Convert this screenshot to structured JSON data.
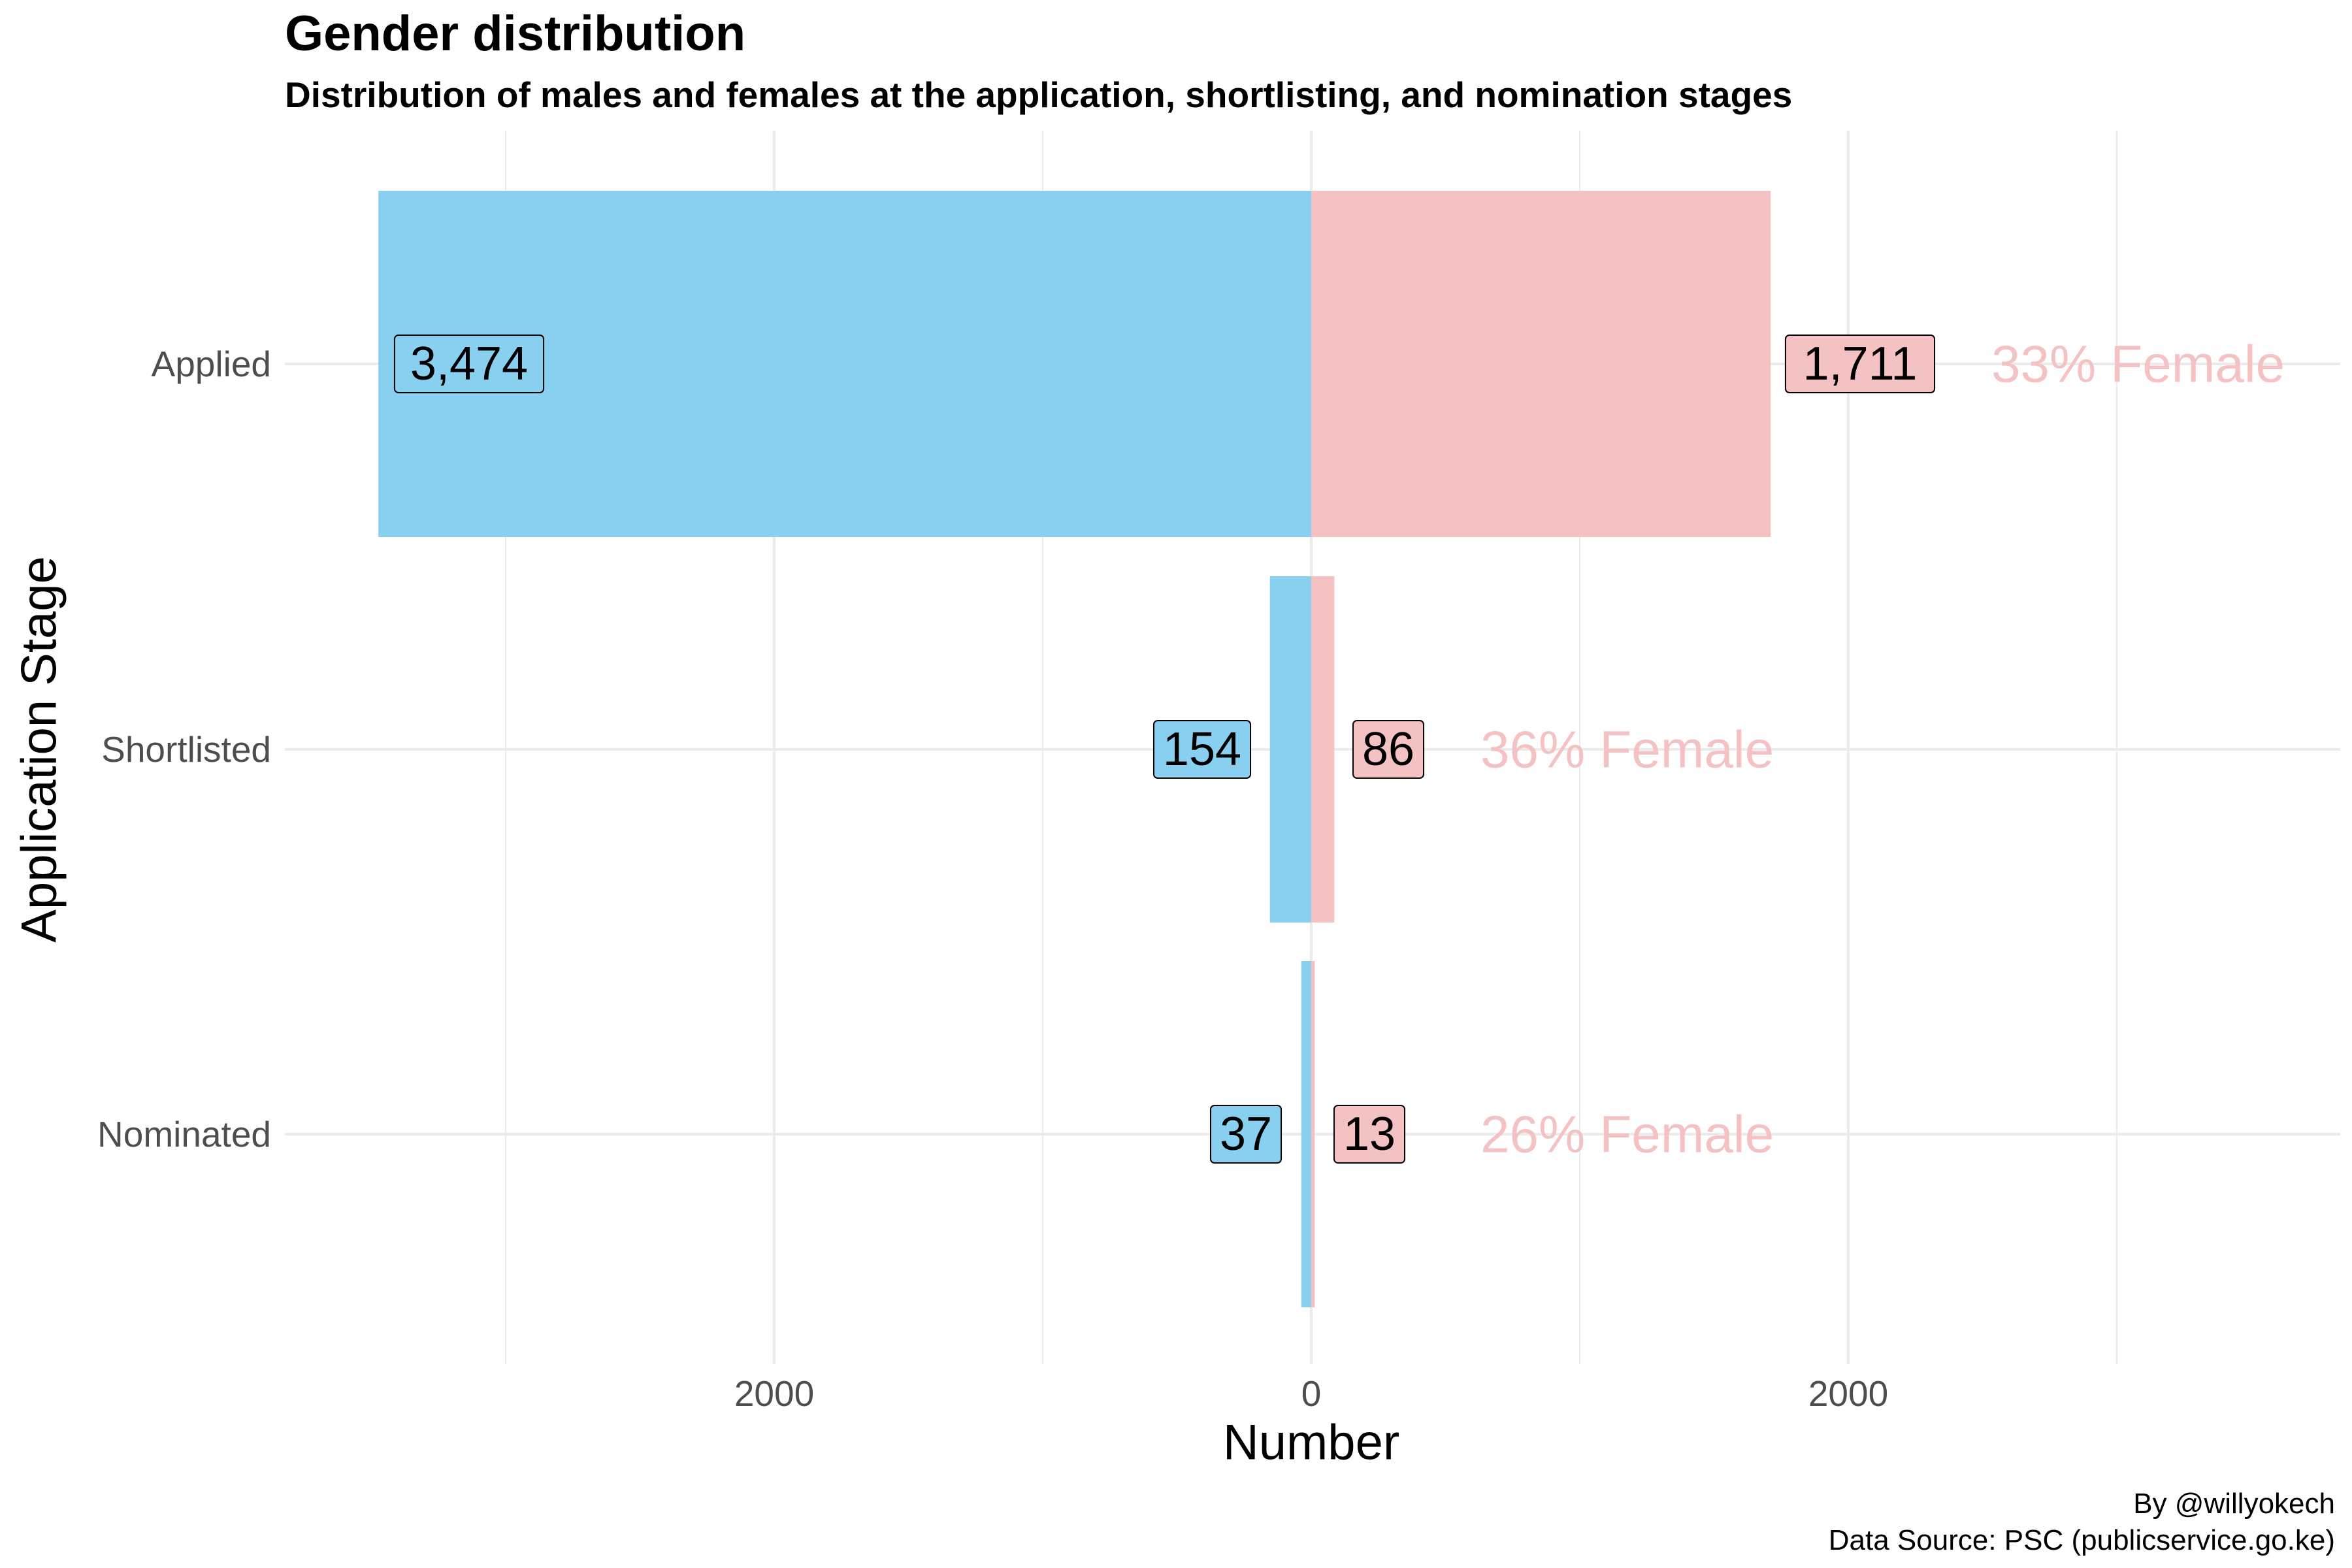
{
  "title": "Gender distribution",
  "subtitle": "Distribution of males and females at the application, shortlisting, and nomination stages",
  "caption": {
    "line1": "By @willyokech",
    "line2": "Data Source: PSC (publicservice.go.ke)"
  },
  "colors": {
    "male": "#89cff0",
    "female": "#f4c2c2",
    "grid": "#ebebeb",
    "text": "#4d4d4d"
  },
  "chart_data": {
    "type": "bar",
    "orientation": "horizontal-diverging",
    "xlabel": "Number",
    "ylabel": "Application Stage",
    "xlim": [
      -3500,
      3800
    ],
    "x_ticks": [
      -2000,
      0,
      2000
    ],
    "x_tick_labels": [
      "2000",
      "0",
      "2000"
    ],
    "grid": true,
    "legend": "none",
    "categories": [
      "Applied",
      "Shortlisted",
      "Nominated"
    ],
    "series": [
      {
        "values": [
          3474,
          154,
          37
        ],
        "labels": [
          "3,474",
          "154",
          "37"
        ],
        "color": "#89cff0"
      },
      {
        "values": [
          1711,
          86,
          13
        ],
        "labels": [
          "1,711",
          "86",
          "13"
        ],
        "color": "#f4c2c2"
      }
    ],
    "annotations": [
      "33% Female",
      "36% Female",
      "26% Female"
    ]
  }
}
